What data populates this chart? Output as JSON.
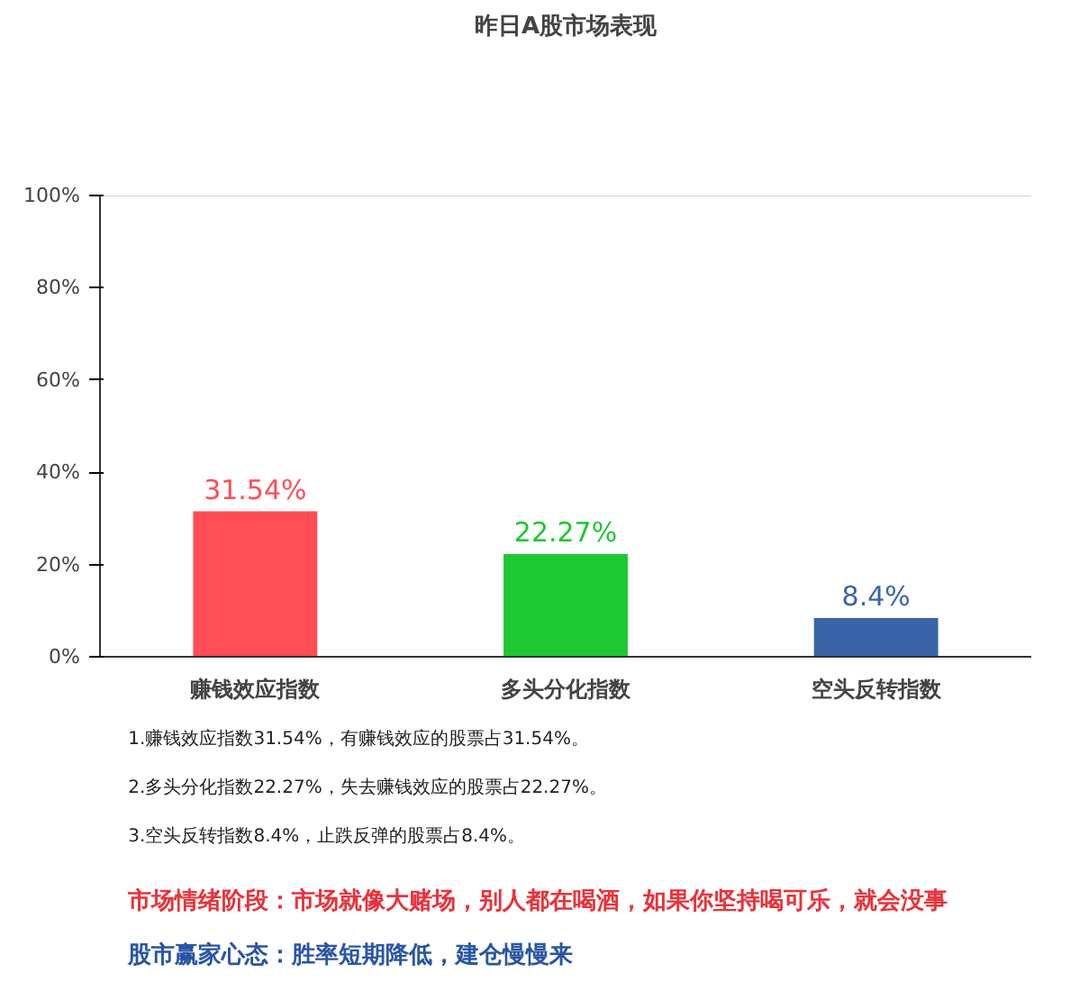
{
  "chart_data": {
    "type": "bar",
    "title": "昨日A股市场表现",
    "categories": [
      "赚钱效应指数",
      "多头分化指数",
      "空头反转指数"
    ],
    "values": [
      31.54,
      22.27,
      8.4
    ],
    "colors": [
      "#ff4d55",
      "#1ec832",
      "#3a64a8"
    ],
    "value_labels": [
      "31.54%",
      "22.27%",
      "8.4%"
    ],
    "ylim": [
      0,
      100
    ],
    "yticks": [
      {
        "value": 0,
        "label": "0%"
      },
      {
        "value": 20,
        "label": "20%"
      },
      {
        "value": 40,
        "label": "40%"
      },
      {
        "value": 60,
        "label": "60%"
      },
      {
        "value": 80,
        "label": "80%"
      },
      {
        "value": 100,
        "label": "100%"
      }
    ],
    "grid": false,
    "annotations": [
      "1.赚钱效应指数31.54%，有赚钱效应的股票占31.54%。",
      "2.多头分化指数22.27%，失去赚钱效应的股票占22.27%。",
      "3.空头反转指数8.4%，止跌反弹的股票占8.4%。",
      "市场情绪阶段：市场就像大赌场，别人都在喝酒，如果你坚持喝可乐，就会没事",
      "股市赢家心态：胜率短期降低，建仓慢慢来"
    ]
  }
}
